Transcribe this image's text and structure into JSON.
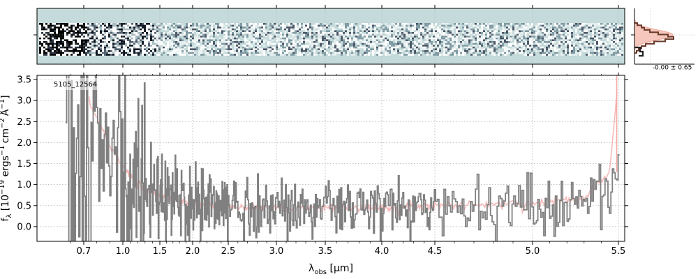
{
  "chart_data": [
    {
      "type": "heatmap",
      "panel": "2D spectrum",
      "description_visible": "noisy 2D spectral image, brighter/darker pixels at blue end",
      "x_scale": "same as 1D panel"
    },
    {
      "type": "line",
      "panel": "1D spectrum",
      "object_label": "5105_12564",
      "xlabel_pre": "λ",
      "xlabel_sub": "obs",
      "xlabel_post": " [μm]",
      "ylabel_pre": "f",
      "ylabel_sub": "λ",
      "ylabel_mid1": " [10",
      "ylabel_sup1": "−19",
      "ylabel_mid2": " ergs",
      "ylabel_sup2": "−1",
      "ylabel_mid3": "cm",
      "ylabel_sup3": "−2",
      "ylabel_mid4": "Å",
      "ylabel_sup4": "−1",
      "ylabel_post": "]",
      "x_scale": "sqrt-like (wavelength)",
      "xlim": [
        0.55,
        5.52
      ],
      "ylim": [
        -0.35,
        3.6
      ],
      "x_ticks": [
        "0.7",
        "1.0",
        "1.5",
        "2.0",
        "2.5",
        "3.0",
        "3.5",
        "4.0",
        "4.5",
        "5.0",
        "5.5"
      ],
      "x_tick_values": [
        0.7,
        1.0,
        1.5,
        2.0,
        2.5,
        3.0,
        3.5,
        4.0,
        4.5,
        5.0,
        5.5
      ],
      "y_ticks": [
        "0.0",
        "0.5",
        "1.0",
        "1.5",
        "2.0",
        "2.5",
        "3.0",
        "3.5"
      ],
      "y_tick_values": [
        0.0,
        0.5,
        1.0,
        1.5,
        2.0,
        2.5,
        3.0,
        3.5
      ],
      "grid": true,
      "series": [
        {
          "color": "#808080",
          "role": "data",
          "x": [
            0.6,
            0.7,
            0.8,
            0.9,
            1.0,
            1.1,
            1.2,
            1.3,
            1.5,
            1.7,
            2.0,
            2.3,
            2.6,
            3.0,
            3.5,
            4.0,
            4.5,
            4.8,
            4.9,
            5.0,
            5.2,
            5.4,
            5.5
          ],
          "y": [
            1.5,
            2.3,
            2.0,
            1.6,
            1.2,
            1.0,
            0.9,
            0.8,
            0.7,
            0.6,
            0.55,
            0.5,
            0.45,
            0.45,
            0.45,
            0.42,
            0.45,
            0.5,
            0.6,
            0.45,
            0.55,
            0.8,
            1.3
          ]
        },
        {
          "color": "#f4a9a8",
          "role": "model/error",
          "x": [
            0.75,
            0.8,
            0.85,
            0.9,
            1.0,
            1.1,
            1.2,
            1.3,
            1.5,
            1.7,
            2.0,
            2.3,
            2.6,
            3.0,
            3.5,
            4.0,
            4.5,
            5.0,
            5.3,
            5.45,
            5.5
          ],
          "y": [
            2.9,
            2.6,
            2.3,
            1.9,
            1.5,
            1.2,
            1.0,
            0.9,
            0.75,
            0.65,
            0.55,
            0.5,
            0.45,
            0.45,
            0.45,
            0.45,
            0.5,
            0.55,
            0.7,
            1.3,
            3.6
          ]
        }
      ]
    },
    {
      "type": "histogram",
      "panel": "residual histogram",
      "annotation": "-0.00 ± 0.65"
    }
  ],
  "colors": {
    "data": "#808080",
    "model": "#f4a9a8",
    "hist_dark": "#6b3a2a",
    "hist_fill": "#f6c8bd",
    "grid": "#b0b0b0",
    "bg2d": "#c5dada"
  }
}
